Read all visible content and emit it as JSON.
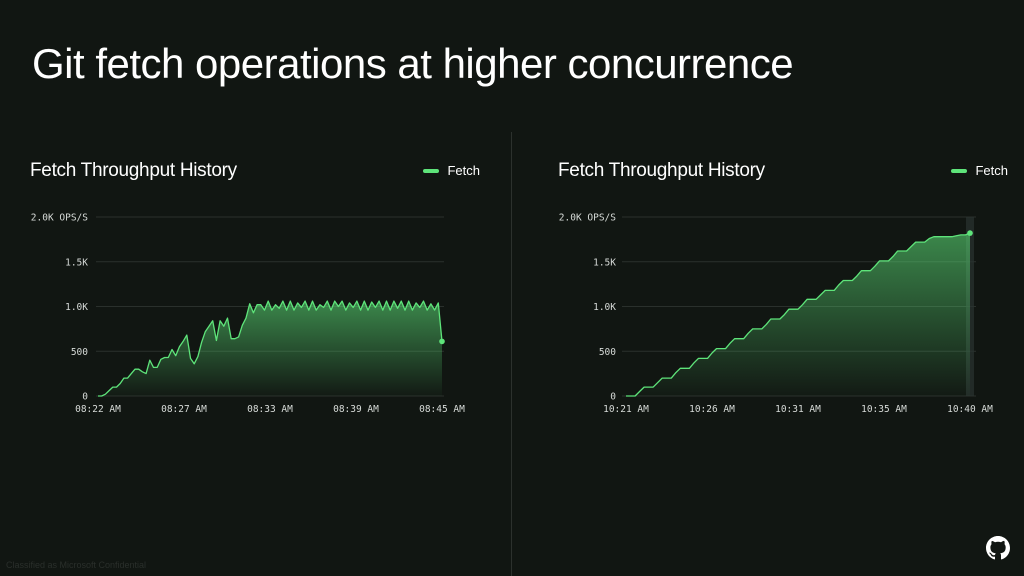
{
  "slide": {
    "title": "Git fetch operations at higher concurrence",
    "footer_note": "Classified as Microsoft Confidential",
    "logo_icon": "github-icon"
  },
  "colors": {
    "background": "#111612",
    "accent": "#5ee47a",
    "grid": "#2a302c",
    "divider": "#2c312d"
  },
  "chart_data": [
    {
      "type": "area",
      "title": "Fetch Throughput History",
      "series": [
        {
          "name": "Fetch",
          "x": [
            0,
            0.5,
            1,
            1.5,
            2,
            2.5,
            3,
            3.5,
            4,
            4.5,
            5,
            5.5,
            6,
            6.5,
            7,
            7.5,
            8,
            8.5,
            9,
            9.5,
            10,
            10.5,
            11,
            11.5,
            12,
            12.5,
            13,
            13.5,
            14,
            14.5,
            15,
            15.5,
            16,
            16.5,
            17,
            17.5,
            18,
            18.5,
            19,
            19.5,
            20,
            20.5,
            21,
            21.5,
            22,
            22.5,
            23,
            23.5,
            24,
            24.5,
            25,
            25.5,
            26,
            26.5,
            27,
            27.5,
            28,
            28.5,
            29,
            29.5,
            30,
            30.5,
            31,
            31.5,
            32,
            32.5,
            33,
            33.5,
            34,
            34.5,
            35,
            35.5,
            36,
            36.5,
            37,
            37.5,
            38,
            38.5,
            39,
            39.5,
            40,
            40.5,
            41,
            41.5,
            42,
            42.5,
            43,
            43.5,
            44,
            44.5,
            45,
            45.5,
            46,
            46.5
          ],
          "values": [
            0,
            0,
            20,
            60,
            100,
            100,
            140,
            200,
            200,
            250,
            300,
            300,
            270,
            250,
            400,
            320,
            320,
            410,
            430,
            430,
            520,
            450,
            550,
            610,
            680,
            420,
            360,
            440,
            600,
            720,
            780,
            840,
            620,
            840,
            780,
            870,
            640,
            640,
            660,
            790,
            870,
            1030,
            930,
            1020,
            1020,
            960,
            1060,
            960,
            1020,
            980,
            1060,
            960,
            1060,
            960,
            1040,
            990,
            1060,
            960,
            1060,
            960,
            1020,
            990,
            1060,
            960,
            1060,
            1000,
            1060,
            960,
            1040,
            990,
            1060,
            960,
            1060,
            960,
            1050,
            990,
            1060,
            960,
            1060,
            960,
            1060,
            980,
            1060,
            960,
            1060,
            960,
            1040,
            990,
            1060,
            960,
            1030,
            960,
            1040,
            610
          ]
        }
      ],
      "x_tick_labels": [
        "08:22 AM",
        "08:27 AM",
        "08:33 AM",
        "08:39 AM",
        "08:45 AM"
      ],
      "y_tick_labels": [
        "0",
        "500",
        "1.0K",
        "1.5K",
        "2.0K OPS/S"
      ],
      "ylim": [
        0,
        2000
      ],
      "grid": true,
      "legend": "top-right"
    },
    {
      "type": "area",
      "title": "Fetch Throughput History",
      "series": [
        {
          "name": "Fetch",
          "x": [
            0,
            1,
            2,
            3,
            4,
            5,
            6,
            7,
            8,
            9,
            10,
            11,
            12,
            13,
            14,
            15,
            16,
            17,
            18,
            19,
            20,
            21,
            22,
            23,
            24,
            25,
            26,
            27,
            28,
            29,
            30,
            31,
            32,
            33,
            34,
            35,
            36,
            37,
            38,
            39,
            40,
            41,
            42,
            43,
            44,
            45,
            46,
            47,
            48,
            49,
            50,
            51,
            52,
            53,
            54,
            55,
            56,
            57,
            58,
            59,
            60,
            61,
            62,
            63,
            64,
            65,
            66,
            67,
            68,
            69,
            70,
            71,
            72,
            73,
            74,
            75,
            76
          ],
          "values": [
            0,
            0,
            0,
            50,
            100,
            100,
            100,
            150,
            200,
            200,
            200,
            260,
            310,
            310,
            310,
            370,
            420,
            420,
            420,
            480,
            530,
            530,
            530,
            590,
            640,
            640,
            640,
            700,
            750,
            750,
            750,
            800,
            860,
            860,
            860,
            910,
            970,
            970,
            970,
            1020,
            1080,
            1080,
            1080,
            1130,
            1180,
            1180,
            1180,
            1240,
            1290,
            1290,
            1290,
            1340,
            1400,
            1400,
            1400,
            1450,
            1510,
            1510,
            1510,
            1560,
            1620,
            1620,
            1620,
            1670,
            1720,
            1720,
            1720,
            1760,
            1780,
            1780,
            1780,
            1780,
            1780,
            1790,
            1800,
            1800,
            1820
          ]
        }
      ],
      "x_tick_labels": [
        "10:21 AM",
        "10:26 AM",
        "10:31 AM",
        "10:35 AM",
        "10:40 AM"
      ],
      "y_tick_labels": [
        "0",
        "500",
        "1.0K",
        "1.5K",
        "2.0K OPS/S"
      ],
      "ylim": [
        0,
        2000
      ],
      "grid": true,
      "legend": "top-right"
    }
  ]
}
